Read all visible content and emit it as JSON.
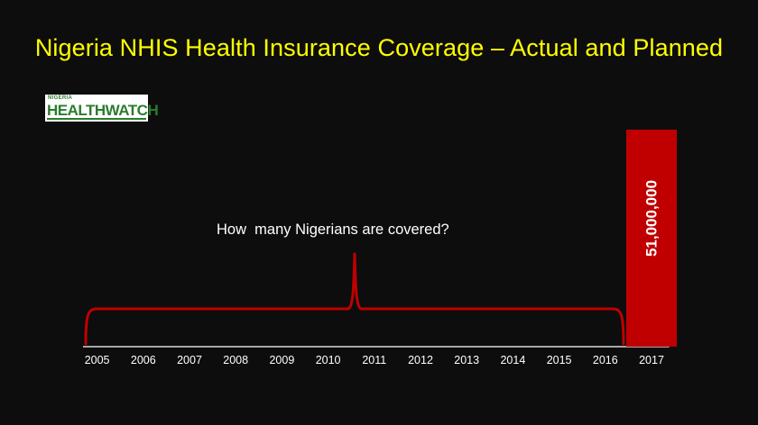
{
  "title": "Nigeria NHIS Health Insurance Coverage – Actual and Planned",
  "logo": {
    "top_text": "NIGERIA",
    "main_text": "HEALTHWATCH"
  },
  "annotation": "How  many Nigerians are covered?",
  "colors": {
    "background": "#0d0d0d",
    "title": "#ffff00",
    "bar": "#c00000",
    "brace": "#c00000",
    "text": "#ffffff",
    "logo_green": "#2a7d2e"
  },
  "chart_data": {
    "type": "bar",
    "title": "Nigeria NHIS Health Insurance Coverage – Actual and Planned",
    "xlabel": "",
    "ylabel": "",
    "categories": [
      "2005",
      "2006",
      "2007",
      "2008",
      "2009",
      "2010",
      "2011",
      "2012",
      "2013",
      "2014",
      "2015",
      "2016",
      "2017"
    ],
    "series": [
      {
        "values": [
          null,
          null,
          null,
          null,
          null,
          null,
          null,
          null,
          null,
          null,
          null,
          null,
          51000000
        ]
      }
    ],
    "data_labels": [
      "",
      "",
      "",
      "",
      "",
      "",
      "",
      "",
      "",
      "",
      "",
      "",
      "51,000,000"
    ],
    "ylim": [
      0,
      51000000
    ],
    "grid": false,
    "legend": "none"
  }
}
